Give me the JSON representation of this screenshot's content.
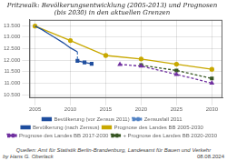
{
  "chart_data": {
    "type": "line",
    "title": "Pritzwalk: Bevölkerungsentwicklung (2005-2013) und Prognosen\n(bis 2030) in den aktuellen Grenzen",
    "xlim": [
      2004.2,
      2031.5
    ],
    "xticks": [
      2005,
      2010,
      2015,
      2020,
      2025,
      2030
    ],
    "ylim": [
      10350,
      13750
    ],
    "yticks": [
      {
        "value": 10500,
        "label": "10.500"
      },
      {
        "value": 11000,
        "label": "11.000"
      },
      {
        "value": 11500,
        "label": "11.500"
      },
      {
        "value": 12000,
        "label": "12.000"
      },
      {
        "value": 12500,
        "label": "12.500"
      },
      {
        "value": 13000,
        "label": "13.000"
      },
      {
        "value": 13500,
        "label": "13.500"
      }
    ],
    "grid": true,
    "legend": "bottom",
    "series": [
      {
        "name": "Bevölkerung (vor Zensus 2011)",
        "color": "#1f4e9e",
        "line_style": "solid",
        "x": [
          2005,
          2006,
          2007,
          2008,
          2009,
          2010,
          2011
        ],
        "values": [
          13480,
          13320,
          13130,
          12940,
          12750,
          12530,
          12360
        ]
      },
      {
        "name": "Zensusfall 2011",
        "color": "#5585c5",
        "line_style": "dashed",
        "x": [
          2011,
          2011
        ],
        "values": [
          12360,
          11970
        ]
      },
      {
        "name": "Bevölkerung (nach Zensus)",
        "color": "#1f4e9e",
        "line_style": "solid",
        "marker": "square",
        "x": [
          2011,
          2012,
          2013
        ],
        "values": [
          11970,
          11900,
          11840
        ]
      },
      {
        "name": "Prognose des Landes BB 2005-2030",
        "color": "#c8a800",
        "line_style": "solid",
        "marker": "circle",
        "x": [
          2005,
          2010,
          2015,
          2020,
          2025,
          2030
        ],
        "values": [
          13480,
          12850,
          12200,
          12050,
          11820,
          11600
        ]
      },
      {
        "name": "Prognose des Landes BB 2017-2030",
        "color": "#7030a0",
        "line_style": "dashed",
        "marker": "triangle",
        "x": [
          2017,
          2020,
          2025,
          2030
        ],
        "values": [
          11810,
          11740,
          11380,
          11000
        ]
      },
      {
        "name": "+ Prognose des Landes BB 2020-2030",
        "color": "#375623",
        "line_style": "dashed",
        "marker": "square",
        "x": [
          2020,
          2025,
          2030
        ],
        "values": [
          11780,
          11550,
          11200
        ]
      }
    ],
    "annotations": [
      "by Hans G. Oberlack",
      "Quellen: Amt für Statistik Berlin-Brandenburg, Landesamt für Bauen und Verkehr",
      "08.08.2024"
    ]
  }
}
